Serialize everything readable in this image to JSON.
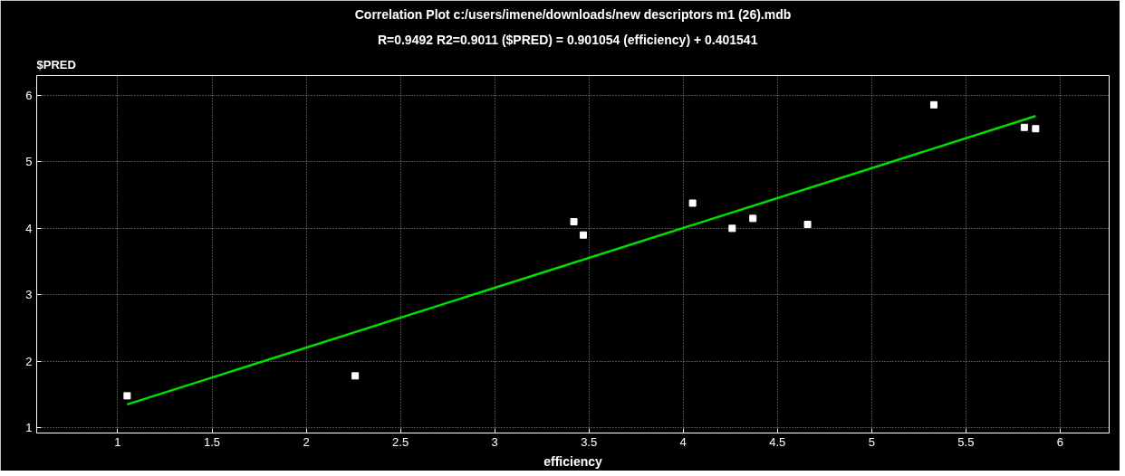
{
  "chart_data": {
    "type": "scatter",
    "title": "Correlation Plot c:/users/imene/downloads/new descriptors m1 (26).mdb",
    "subtitle": "R=0.9492 R2=0.9011    ($PRED) = 0.901054 (efficiency) + 0.401541",
    "xlabel": "efficiency",
    "ylabel": "$PRED",
    "series": [
      {
        "color": "#ffffff",
        "marker": "square",
        "x": [
          1.05,
          2.26,
          3.42,
          3.47,
          4.05,
          4.26,
          4.37,
          4.66,
          5.33,
          5.81,
          5.87
        ],
        "values": [
          1.48,
          1.78,
          4.1,
          3.9,
          4.38,
          4.0,
          4.15,
          4.06,
          5.86,
          5.52,
          5.5
        ]
      },
      {
        "type": "line",
        "color": "#00dd00",
        "line_style": "solid",
        "x": [
          1.05,
          5.87
        ],
        "values": [
          1.35,
          5.69
        ]
      }
    ],
    "xlim": [
      0.57,
      6.26
    ],
    "ylim": [
      0.92,
      6.3
    ],
    "xticks": [
      1,
      1.5,
      2,
      2.5,
      3,
      3.5,
      4,
      4.5,
      5,
      5.5,
      6
    ],
    "yticks": [
      1,
      2,
      3,
      4,
      5,
      6
    ],
    "grid": true
  }
}
